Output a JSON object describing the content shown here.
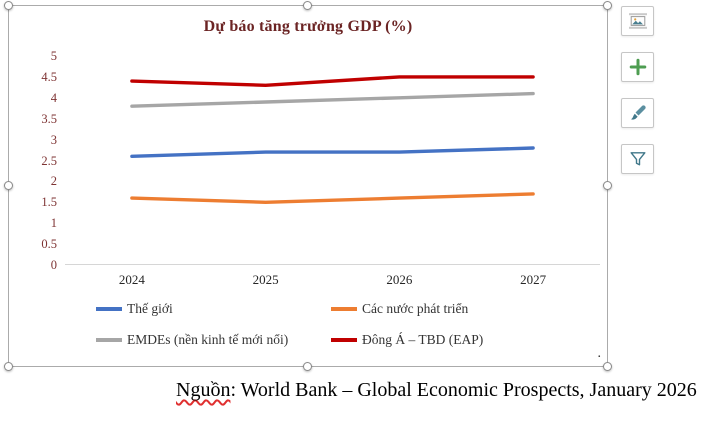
{
  "chart": {
    "trailing_period": "."
  },
  "chart_data": {
    "type": "line",
    "title": "Dự báo tăng trưởng GDP (%)",
    "title_color": "#6B2424",
    "ytick_color": "#7E3333",
    "x": [
      "2024",
      "2025",
      "2026",
      "2027"
    ],
    "series": [
      {
        "name": "Thế giới",
        "color": "#4472C4",
        "values": [
          2.6,
          2.7,
          2.7,
          2.8
        ]
      },
      {
        "name": "Các nước phát triển",
        "color": "#ED7D31",
        "values": [
          1.6,
          1.5,
          1.6,
          1.7
        ]
      },
      {
        "name": "EMDEs (nền kinh tế mới nổi)",
        "color": "#A6A6A6",
        "values": [
          3.8,
          3.9,
          4.0,
          4.1
        ]
      },
      {
        "name": "Đông Á – TBD (EAP)",
        "color": "#C00000",
        "values": [
          4.4,
          4.3,
          4.5,
          4.5
        ]
      }
    ],
    "xlabel": "",
    "ylabel": "",
    "ylim": [
      0,
      5
    ],
    "yticks": [
      "0",
      "0.5",
      "1",
      "1.5",
      "2",
      "2.5",
      "3",
      "3.5",
      "4",
      "4.5",
      "5"
    ],
    "legend_position": "bottom",
    "grid": false
  },
  "caption": {
    "word": "Nguồn",
    "rest": ": World Bank – Global Economic Prospects, January 2026"
  },
  "toolbar": {
    "buttons": [
      {
        "name": "layout-options",
        "icon": "layout-options-icon"
      },
      {
        "name": "chart-elements",
        "icon": "plus-icon"
      },
      {
        "name": "chart-styles",
        "icon": "paintbrush-icon"
      },
      {
        "name": "chart-filters",
        "icon": "funnel-icon"
      }
    ]
  }
}
